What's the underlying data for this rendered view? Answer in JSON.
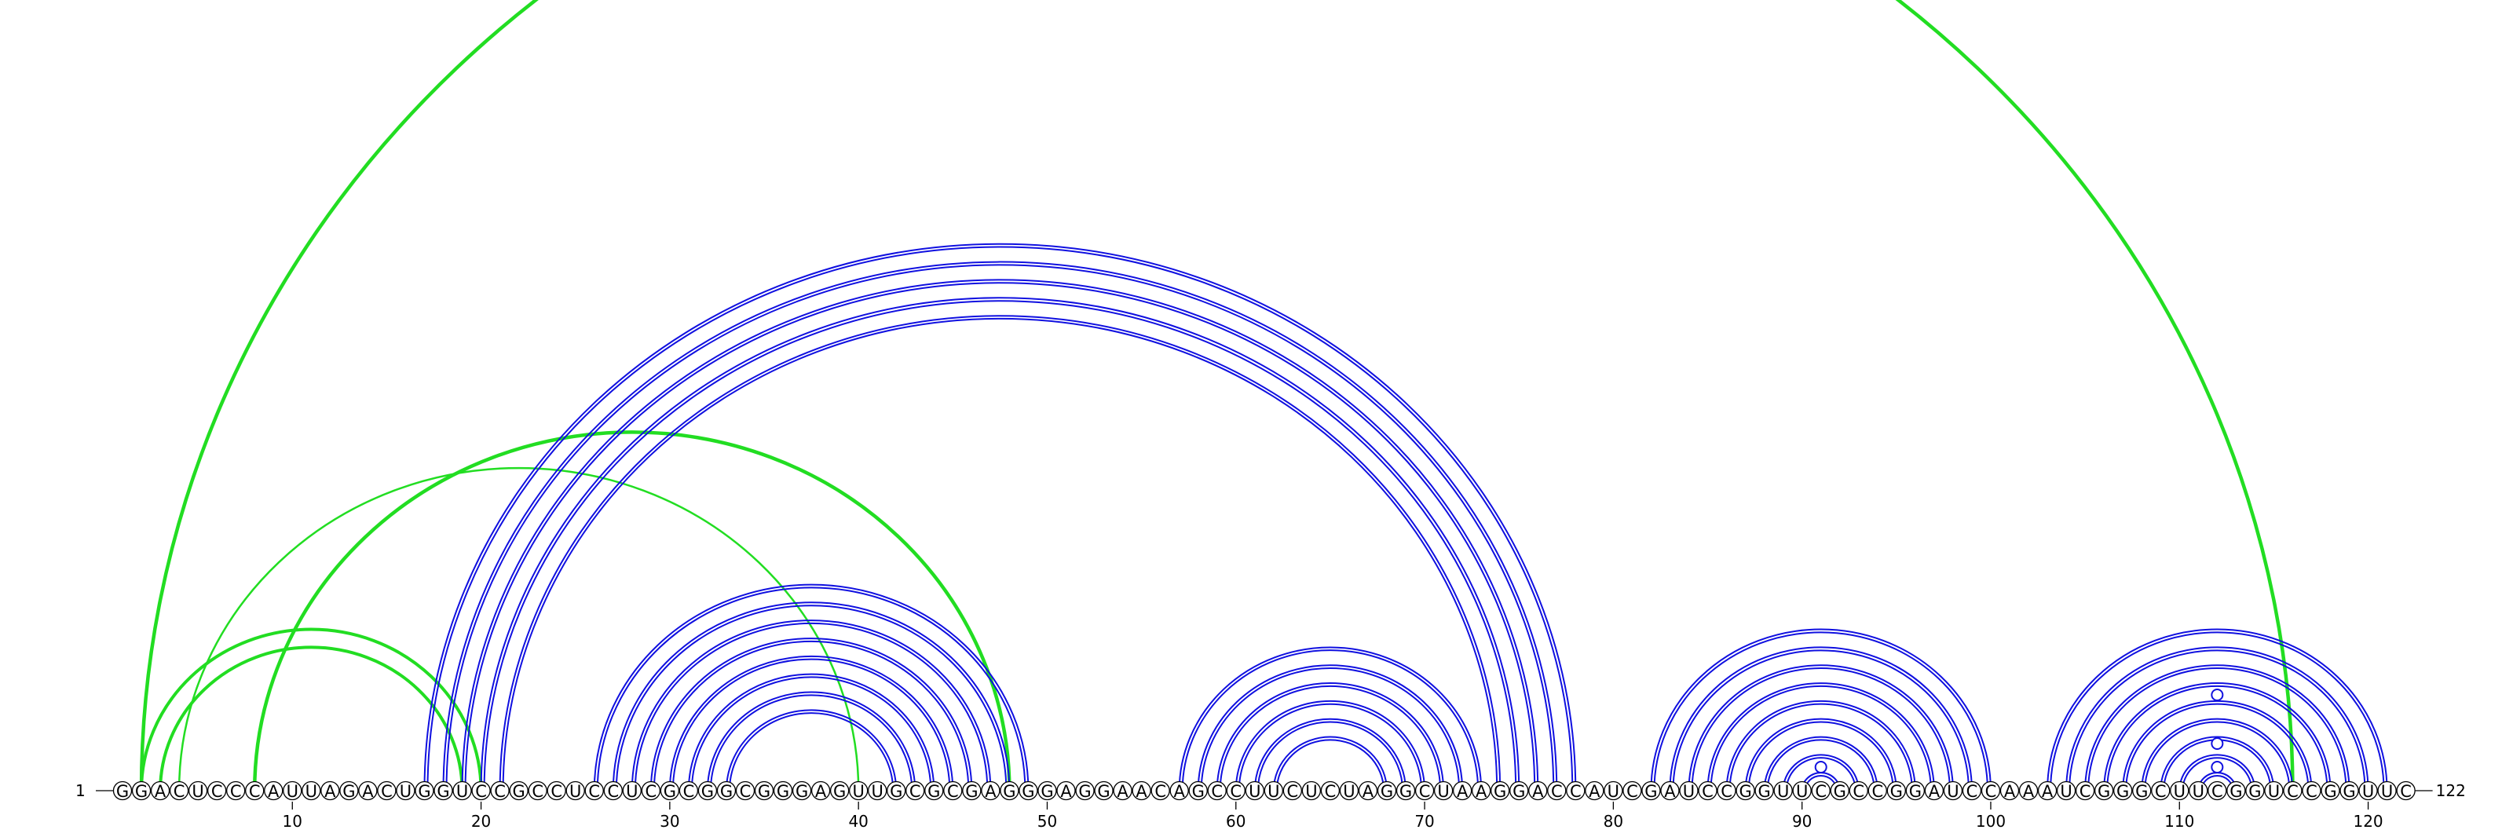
{
  "sequence": "GGACUCCCAUUAGACUGGUCCGCCUCCUCGCGGCGGGAGUUGCGCGAGGGAGGAACAGCCUUCUCUAGGCUAAGGACCAUCGAUCCGGUUCGCCGGAUCCAAAUCGGGCUUCGGUCCGGUUC",
  "start_label": "1",
  "end_label": "122",
  "ticks": [
    "10",
    "20",
    "30",
    "40",
    "50",
    "60",
    "70",
    "80",
    "90",
    "100",
    "110",
    "120"
  ],
  "colors": {
    "blue": "#1010e0",
    "green": "#22dd22",
    "nucleotide_fill": "#ffffff",
    "text": "#000000"
  },
  "blue_pairs": [
    [
      17,
      78
    ],
    [
      18,
      77
    ],
    [
      19,
      76
    ],
    [
      20,
      75
    ],
    [
      21,
      74
    ],
    [
      26,
      49
    ],
    [
      27,
      48
    ],
    [
      28,
      47
    ],
    [
      29,
      46
    ],
    [
      30,
      45
    ],
    [
      31,
      44
    ],
    [
      32,
      43
    ],
    [
      33,
      42
    ],
    [
      57,
      73
    ],
    [
      58,
      72
    ],
    [
      59,
      71
    ],
    [
      60,
      70
    ],
    [
      61,
      69
    ],
    [
      62,
      68
    ],
    [
      82,
      100
    ],
    [
      83,
      99
    ],
    [
      84,
      98
    ],
    [
      85,
      97
    ],
    [
      86,
      96
    ],
    [
      87,
      95
    ],
    [
      88,
      94
    ],
    [
      89,
      93
    ],
    [
      90,
      92
    ],
    [
      103,
      121
    ],
    [
      104,
      120
    ],
    [
      105,
      119
    ],
    [
      106,
      118
    ],
    [
      107,
      117
    ],
    [
      108,
      116
    ],
    [
      109,
      115
    ],
    [
      110,
      114
    ],
    [
      111,
      113
    ]
  ],
  "green_pairs": [
    [
      2,
      116
    ],
    [
      2,
      20
    ],
    [
      3,
      19
    ],
    [
      8,
      48
    ],
    [
      4,
      40
    ]
  ],
  "open_circles_positions": [
    91,
    112
  ]
}
